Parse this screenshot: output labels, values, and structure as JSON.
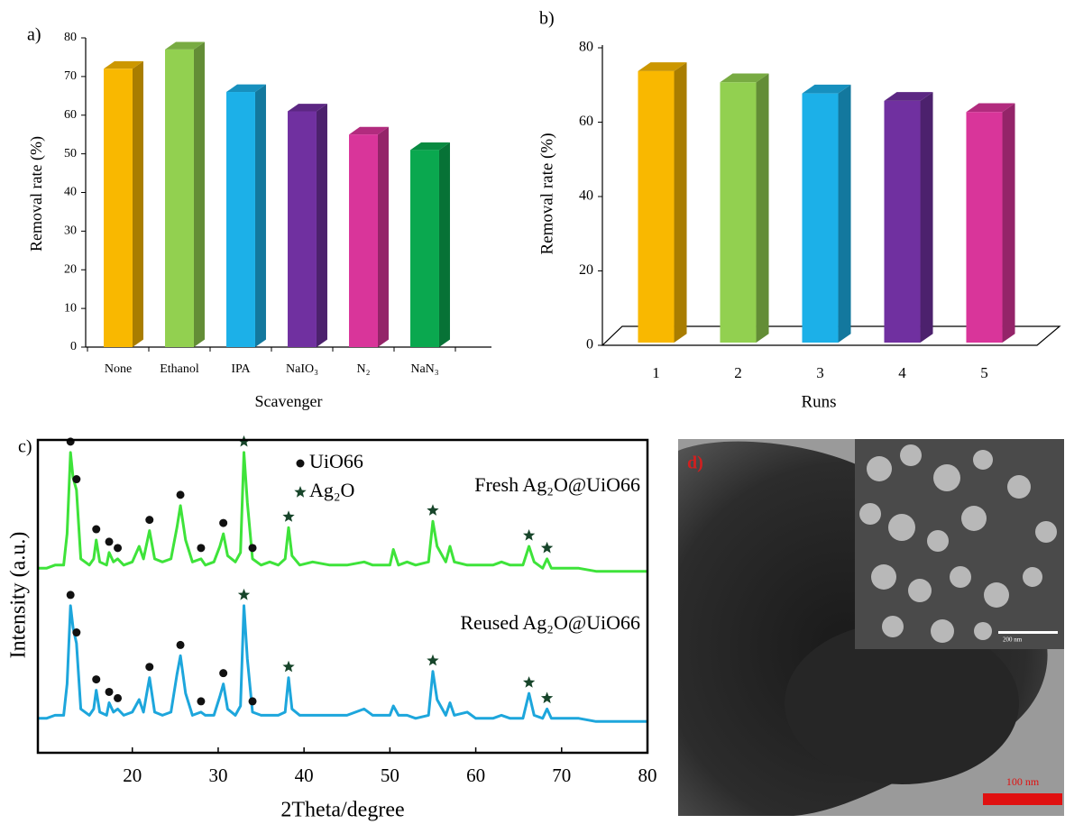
{
  "chart_data": [
    {
      "type": "bar",
      "label": "a)",
      "y_label": "Removal rate (%)",
      "x_label": "Scavenger",
      "categories": [
        "None",
        "Ethanol",
        "IPA",
        "NaIO₃",
        "N₂",
        "NaN₃"
      ],
      "values": [
        72,
        77,
        66,
        61,
        55,
        51
      ],
      "colors": [
        "#f9b800",
        "#92d050",
        "#1cb0e8",
        "#7030a0",
        "#d9359a",
        "#0aa84f"
      ],
      "ylim": [
        0,
        80
      ],
      "yticks": [
        0,
        10,
        20,
        30,
        40,
        50,
        60,
        70,
        80
      ],
      "three_d": true
    },
    {
      "type": "bar",
      "label": "b)",
      "y_label": "Removal rate (%)",
      "x_label": "Runs",
      "categories": [
        "1",
        "2",
        "3",
        "4",
        "5"
      ],
      "values": [
        73,
        70,
        67,
        65,
        62
      ],
      "colors": [
        "#f9b800",
        "#92d050",
        "#1cb0e8",
        "#7030a0",
        "#d9359a"
      ],
      "ylim": [
        0,
        80
      ],
      "yticks": [
        0,
        20,
        40,
        60,
        80
      ],
      "three_d": true,
      "floor": true
    },
    {
      "type": "line",
      "label": "c)",
      "y_label": "Intensity (a.u.)",
      "x_label": "2Theta/degree",
      "x": [
        9,
        10,
        11,
        12,
        12.4,
        12.8,
        13.1,
        13.5,
        14,
        15,
        15.5,
        15.8,
        16.2,
        17,
        17.3,
        17.8,
        18.3,
        19,
        20,
        20.8,
        21.3,
        22,
        22.6,
        23.5,
        24.5,
        25.2,
        25.6,
        26.2,
        27,
        28,
        28.5,
        29.5,
        30.2,
        30.6,
        31.1,
        32,
        32.6,
        33,
        33.4,
        34,
        35,
        36,
        37,
        37.8,
        38.2,
        38.6,
        39.5,
        41,
        43,
        45,
        47,
        48,
        50,
        50.4,
        51,
        52,
        53,
        54.5,
        55,
        55.5,
        56.5,
        57,
        57.5,
        59,
        60,
        62,
        63,
        64,
        65.5,
        66.2,
        66.8,
        67.8,
        68.3,
        68.8,
        70,
        72,
        74,
        76,
        78,
        80
      ],
      "series": [
        {
          "name": "Fresh Ag₂O@UiO66",
          "color": "#3ee33a",
          "values": [
            59,
            59,
            60,
            60,
            70,
            96,
            88,
            84,
            62,
            60,
            62,
            68,
            61,
            60,
            64,
            61,
            62,
            60,
            61,
            66,
            62,
            71,
            62,
            61,
            62,
            72,
            79,
            68,
            61,
            62,
            60,
            61,
            66,
            70,
            63,
            61,
            64,
            96,
            80,
            62,
            60,
            61,
            60,
            62,
            72,
            63,
            60,
            61,
            60,
            60,
            61,
            60,
            60,
            65,
            60,
            61,
            60,
            61,
            74,
            66,
            61,
            66,
            61,
            60,
            60,
            60,
            61,
            60,
            60,
            66,
            61,
            59,
            62,
            59,
            59,
            59,
            58,
            58,
            58,
            58
          ]
        },
        {
          "name": "Reused Ag₂O@UiO66",
          "color": "#1da6dc",
          "values": [
            11,
            11,
            12,
            12,
            22,
            47,
            40,
            35,
            14,
            12,
            14,
            20,
            13,
            12,
            16,
            13,
            14,
            12,
            13,
            17,
            13,
            24,
            13,
            12,
            13,
            25,
            31,
            19,
            12,
            13,
            12,
            12,
            18,
            22,
            14,
            12,
            15,
            47,
            30,
            13,
            12,
            12,
            12,
            13,
            24,
            14,
            12,
            12,
            12,
            12,
            14,
            12,
            12,
            15,
            12,
            12,
            11,
            12,
            26,
            17,
            12,
            16,
            12,
            13,
            11,
            11,
            12,
            11,
            11,
            19,
            12,
            11,
            14,
            11,
            11,
            11,
            10,
            10,
            10,
            10
          ]
        }
      ],
      "xlim": [
        9,
        80
      ],
      "xticks": [
        20,
        30,
        40,
        50,
        60,
        70,
        80
      ],
      "ylim": [
        0,
        100
      ],
      "phases": [
        {
          "name": "UiO66",
          "symbol": "circle",
          "peaks": [
            12.8,
            13.5,
            15.8,
            17.3,
            18.3,
            22,
            25.6,
            28,
            30.6,
            34
          ]
        },
        {
          "name": "Ag₂O",
          "symbol": "star",
          "peaks": [
            33,
            38.2,
            55,
            66.2,
            68.3
          ]
        }
      ]
    }
  ],
  "micrograph": {
    "label": "d)",
    "scale_bar": "100 nm",
    "inset_scale_bar": "200 nm"
  }
}
